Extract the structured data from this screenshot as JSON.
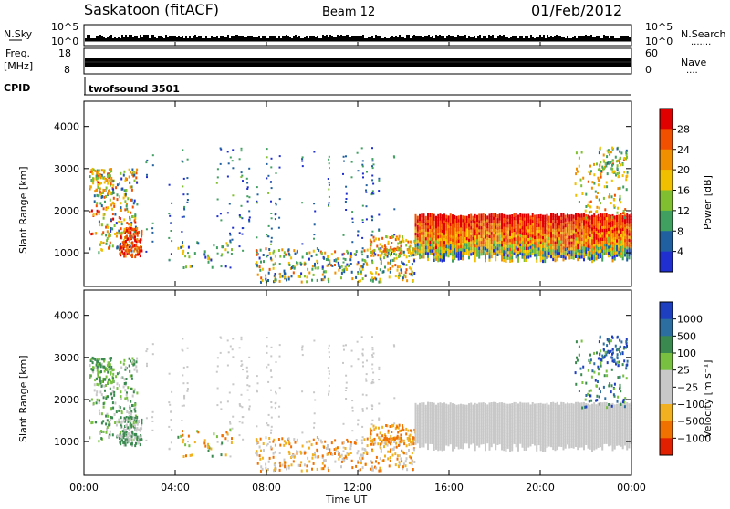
{
  "header": {
    "station": "Saskatoon (fitACF)",
    "beam": "Beam 12",
    "date": "01/Feb/2012"
  },
  "strips": {
    "nsky": {
      "label": "N.Sky",
      "right_label": "N.Search",
      "right_dots": ".......",
      "left_ticks": [
        "10^5",
        "10^0"
      ],
      "right_ticks": [
        "10^5",
        "10^0"
      ]
    },
    "freq": {
      "label_top": "Freq.",
      "label_bottom": "[MHz]",
      "left_ticks": [
        "18",
        "8"
      ],
      "right_ticks": [
        "60",
        "0"
      ],
      "right_label": "Nave",
      "right_dots": "...."
    },
    "cpid": {
      "label": "CPID",
      "value": "twofsound 3501"
    }
  },
  "chart_data": [
    {
      "type": "heatmap",
      "panel": "power",
      "ylabel": "Slant Range [km]",
      "ylim": [
        200,
        4600
      ],
      "y_ticks": [
        "4000",
        "3000",
        "2000",
        "1000"
      ],
      "x_ticks": [
        "00:00",
        "04:00",
        "08:00",
        "12:00",
        "16:00",
        "20:00",
        "00:00"
      ],
      "colorbar": {
        "label": "Power [dB]",
        "ticks": [
          "28",
          "24",
          "20",
          "16",
          "12",
          "8",
          "4"
        ],
        "colors": [
          "#e00000",
          "#f05000",
          "#f09000",
          "#f0c000",
          "#80c030",
          "#40a060",
          "#2060a0",
          "#2030d0"
        ]
      }
    },
    {
      "type": "heatmap",
      "panel": "velocity",
      "ylabel": "Slant Range [km]",
      "ylim": [
        200,
        4600
      ],
      "y_ticks": [
        "4000",
        "3000",
        "2000",
        "1000"
      ],
      "x_ticks": [
        "00:00",
        "04:00",
        "08:00",
        "12:00",
        "16:00",
        "20:00",
        "00:00"
      ],
      "xlabel": "Time UT",
      "colorbar": {
        "label": "Velocity [m s⁻¹]",
        "ticks": [
          "1000",
          "500",
          "100",
          "25",
          "−25",
          "−100",
          "−500",
          "−1000"
        ],
        "colors": [
          "#1e40c0",
          "#2d6ea0",
          "#3a8a50",
          "#78c040",
          "#c8c8c8",
          "#c8c8c8",
          "#f0b020",
          "#f07000",
          "#e02000"
        ]
      }
    }
  ]
}
